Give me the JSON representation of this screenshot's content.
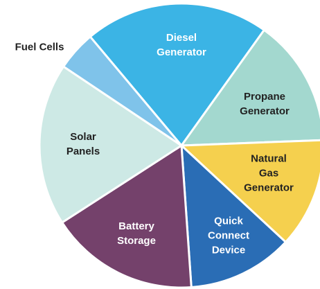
{
  "chart_data": {
    "type": "pie",
    "categories": [
      "Diesel\nGenerator",
      "Propane\nGenerator",
      "Natural Gas\nGenerator",
      "Quick\nConnect\nDevice",
      "Battery\nStorage",
      "Solar\nPanels",
      "Fuel Cells"
    ],
    "values": [
      21,
      14.5,
      12.5,
      12,
      17,
      18.5,
      4.5
    ],
    "colors": [
      "#3bb4e5",
      "#a3d8cf",
      "#f5d04e",
      "#2a6db5",
      "#74416b",
      "#cde9e5",
      "#7fc3ea"
    ]
  }
}
